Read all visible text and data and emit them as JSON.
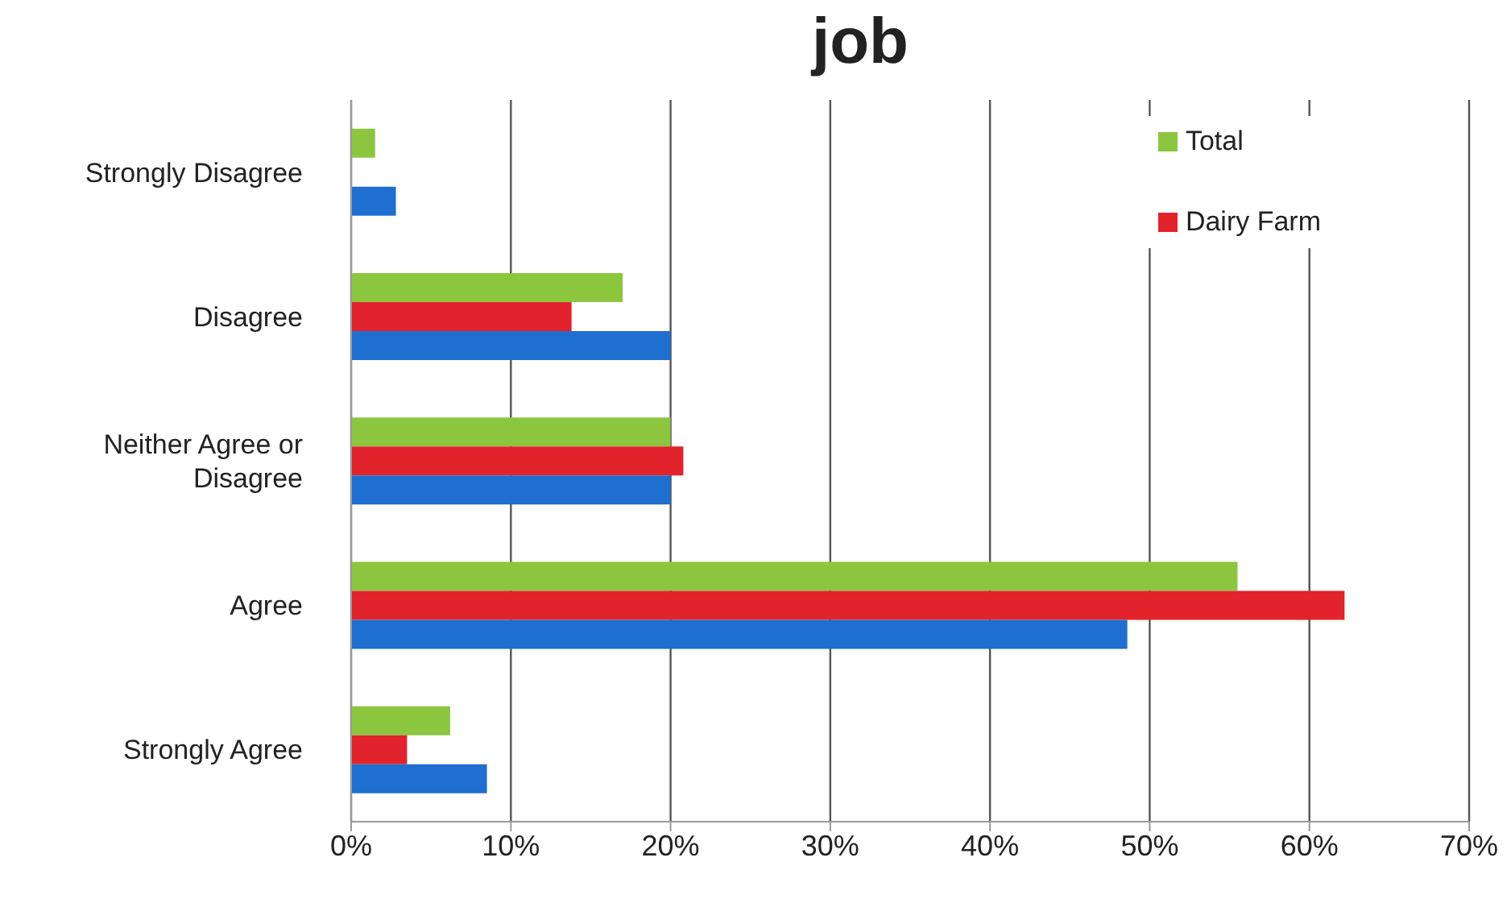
{
  "chart_data": {
    "type": "bar",
    "orientation": "horizontal",
    "title": "job",
    "categories": [
      "Strongly Disagree",
      "Disagree",
      "Neither Agree or Disagree",
      "Agree",
      "Strongly Agree"
    ],
    "series": [
      {
        "name": "Total",
        "color": "#8cc63f",
        "values": [
          1.5,
          17,
          20,
          55.5,
          6.2
        ]
      },
      {
        "name": "Dairy Farm",
        "color": "#e2232b",
        "values": [
          null,
          13.8,
          20.8,
          62.2,
          3.5
        ]
      },
      {
        "color": "#1e6fcf",
        "values": [
          2.8,
          20,
          20,
          48.6,
          8.5
        ]
      }
    ],
    "xlim": [
      0,
      70
    ],
    "xticks": [
      {
        "value": 0,
        "label": "0%"
      },
      {
        "value": 10,
        "label": "10%"
      },
      {
        "value": 20,
        "label": "20%"
      },
      {
        "value": 30,
        "label": "30%"
      },
      {
        "value": 40,
        "label": "40%"
      },
      {
        "value": 50,
        "label": "50%"
      },
      {
        "value": 60,
        "label": "60%"
      },
      {
        "value": 70,
        "label": "70%"
      }
    ],
    "grid": "x",
    "legend": "top right"
  }
}
